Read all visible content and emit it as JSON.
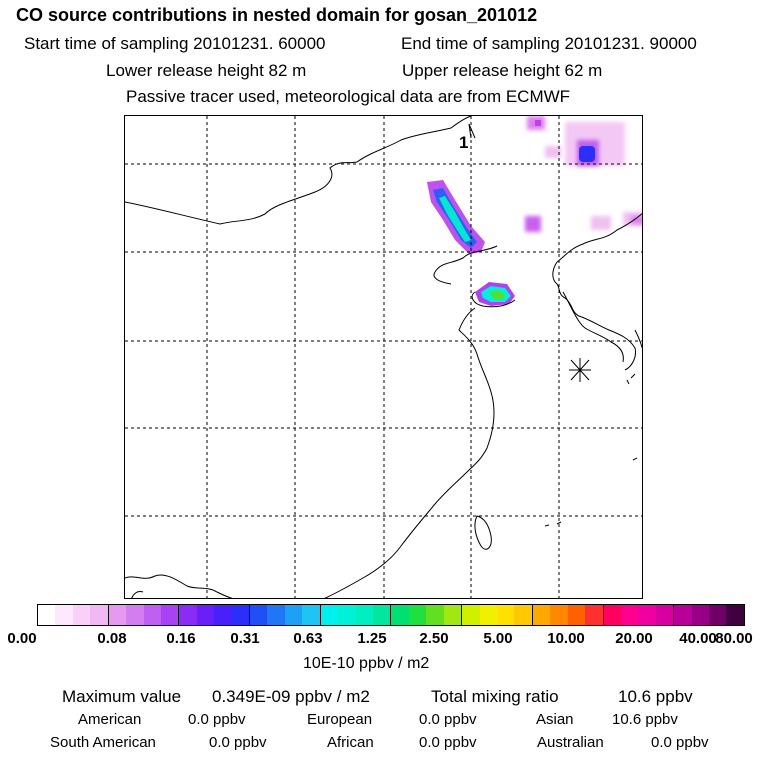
{
  "header": {
    "title": "CO  source contributions in nested domain for gosan_201012",
    "start_time_label": "Start time of sampling 20101231. 60000",
    "end_time_label": "End time of sampling 20101231. 90000",
    "lower_release": "Lower release height   82 m",
    "upper_release": "Upper release height   62 m",
    "note": "Passive tracer used, meteorological data are from ECMWF"
  },
  "map": {
    "panel_number": "1",
    "receptor_marker": "asterisk-icon"
  },
  "colorbar": {
    "colors": [
      "#ffffff",
      "#fde8fd",
      "#f8d0f8",
      "#f2b8f4",
      "#e59af0",
      "#d47df0",
      "#c060f2",
      "#a842f4",
      "#8a2cf6",
      "#6a1ef8",
      "#4a20fa",
      "#2a30fa",
      "#1e50f6",
      "#1e78f4",
      "#1ea0f4",
      "#1ec4f4",
      "#00f0f0",
      "#00f0d8",
      "#00eec0",
      "#00e8a0",
      "#00e070",
      "#20e040",
      "#60e020",
      "#a0e810",
      "#d0f000",
      "#f0f000",
      "#ffe000",
      "#ffc800",
      "#ffa800",
      "#ff8800",
      "#ff6000",
      "#ff3030",
      "#ff0060",
      "#ff0090",
      "#f000a0",
      "#d800a0",
      "#b80098",
      "#980088",
      "#700068",
      "#400040"
    ],
    "major_boundaries": [
      4,
      8,
      12,
      16,
      20,
      24,
      28,
      32,
      36
    ],
    "tick_labels": [
      "0.00",
      "0.08",
      "0.16",
      "0.31",
      "0.63",
      "1.25",
      "2.50",
      "5.00",
      "10.00",
      "20.00",
      "40.00",
      "80.00"
    ],
    "unit": "10E-10 ppbv / m2"
  },
  "summary": {
    "max_value_label": "Maximum value",
    "max_value": "0.349E-09 ppbv / m2",
    "total_label": "Total mixing ratio",
    "total_value": "10.6 ppbv",
    "american_label": "American",
    "american_value": "0.0 ppbv",
    "european_label": "European",
    "european_value": "0.0 ppbv",
    "asian_label": "Asian",
    "asian_value": "10.6 ppbv",
    "south_american_label": "South American",
    "south_american_value": "0.0 ppbv",
    "african_label": "African",
    "african_value": "0.0 ppbv",
    "australian_label": "Australian",
    "australian_value": "0.0 ppbv"
  }
}
